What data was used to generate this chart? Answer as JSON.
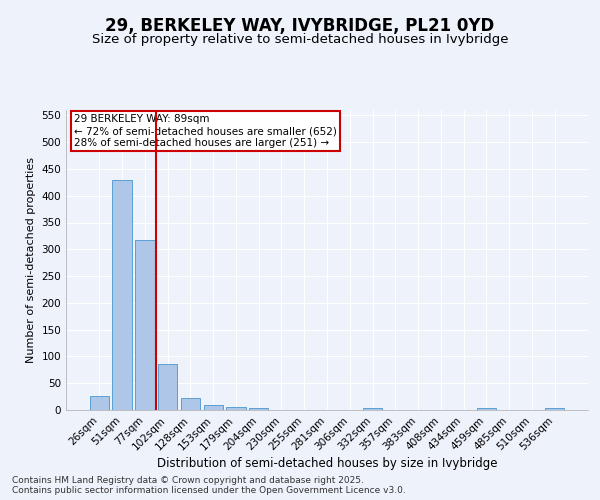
{
  "title_line1": "29, BERKELEY WAY, IVYBRIDGE, PL21 0YD",
  "title_line2": "Size of property relative to semi-detached houses in Ivybridge",
  "xlabel": "Distribution of semi-detached houses by size in Ivybridge",
  "ylabel": "Number of semi-detached properties",
  "categories": [
    "26sqm",
    "51sqm",
    "77sqm",
    "102sqm",
    "128sqm",
    "153sqm",
    "179sqm",
    "204sqm",
    "230sqm",
    "255sqm",
    "281sqm",
    "306sqm",
    "332sqm",
    "357sqm",
    "383sqm",
    "408sqm",
    "434sqm",
    "459sqm",
    "485sqm",
    "510sqm",
    "536sqm"
  ],
  "values": [
    27,
    430,
    318,
    85,
    22,
    10,
    5,
    3,
    0,
    0,
    0,
    0,
    3,
    0,
    0,
    0,
    0,
    3,
    0,
    0,
    3
  ],
  "bar_color": "#aec6e8",
  "bar_edge_color": "#5a9fd4",
  "redline_x": 2.5,
  "annotation_text": "29 BERKELEY WAY: 89sqm\n← 72% of semi-detached houses are smaller (652)\n28% of semi-detached houses are larger (251) →",
  "annotation_box_color": "#ffffff",
  "annotation_box_edge": "#cc0000",
  "ylim": [
    0,
    560
  ],
  "yticks": [
    0,
    50,
    100,
    150,
    200,
    250,
    300,
    350,
    400,
    450,
    500,
    550
  ],
  "redline_color": "#cc0000",
  "footer1": "Contains HM Land Registry data © Crown copyright and database right 2025.",
  "footer2": "Contains public sector information licensed under the Open Government Licence v3.0.",
  "bg_color": "#eef2fb",
  "grid_color": "#ffffff",
  "title1_fontsize": 12,
  "title2_fontsize": 9.5,
  "xlabel_fontsize": 8.5,
  "ylabel_fontsize": 8,
  "tick_fontsize": 7.5,
  "annotation_fontsize": 7.5,
  "footer_fontsize": 6.5
}
